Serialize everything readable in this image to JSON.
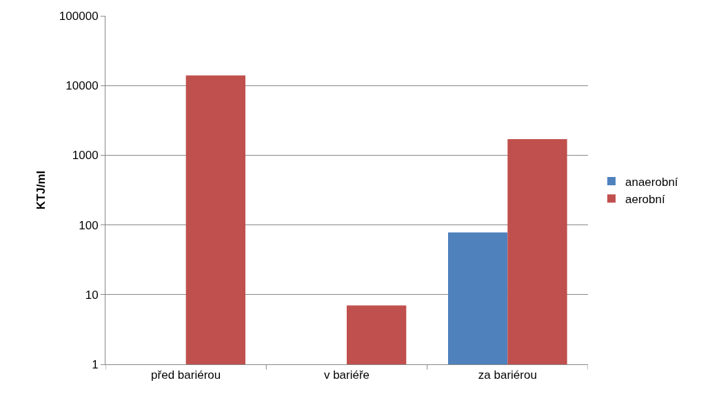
{
  "chart_data": {
    "type": "bar",
    "ylabel": "KTJ/ml",
    "categories": [
      "před bariérou",
      "v bariéře",
      "za bariérou"
    ],
    "series": [
      {
        "name": "anaerobní",
        "color": "#4f81bd",
        "values": [
          null,
          null,
          78
        ]
      },
      {
        "name": "aerobní",
        "color": "#c0504d",
        "values": [
          14000,
          7,
          1700
        ]
      }
    ],
    "log": "y",
    "ylim": [
      1,
      100000
    ],
    "yticks": [
      1,
      10,
      100,
      1000,
      10000,
      100000
    ],
    "grid": "y",
    "legend": "right"
  }
}
